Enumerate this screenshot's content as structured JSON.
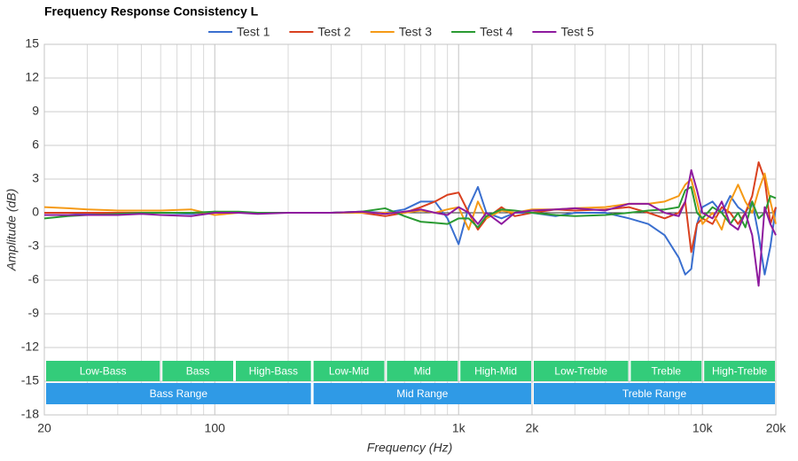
{
  "chart_data": {
    "type": "line",
    "title": "Frequency Response Consistency L",
    "x_label": "Frequency (Hz)",
    "y_label": "Amplitude (dB)",
    "x_scale": "log",
    "xlim": [
      20,
      20000
    ],
    "ylim": [
      -18,
      15
    ],
    "xticks": [
      20,
      100,
      {
        "value": 1000,
        "label": "1k"
      },
      {
        "value": 2000,
        "label": "2k"
      },
      {
        "value": 10000,
        "label": "10k"
      },
      {
        "value": 20000,
        "label": "20k"
      }
    ],
    "xminor": [
      30,
      40,
      50,
      60,
      70,
      80,
      90,
      200,
      300,
      400,
      500,
      600,
      700,
      800,
      900,
      3000,
      4000,
      5000,
      6000,
      7000,
      8000,
      9000
    ],
    "yticks": [
      15,
      12,
      9,
      6,
      3,
      0,
      -3,
      -6,
      -9,
      -12,
      -15,
      -18
    ],
    "grid": true,
    "legend": "top",
    "reference_line": 0,
    "bands": [
      {
        "label": "Low-Bass",
        "from": 20,
        "to": 60
      },
      {
        "label": "Bass",
        "from": 60,
        "to": 120
      },
      {
        "label": "High-Bass",
        "from": 120,
        "to": 250
      },
      {
        "label": "Low-Mid",
        "from": 250,
        "to": 500
      },
      {
        "label": "Mid",
        "from": 500,
        "to": 1000
      },
      {
        "label": "High-Mid",
        "from": 1000,
        "to": 2000
      },
      {
        "label": "Low-Treble",
        "from": 2000,
        "to": 5000
      },
      {
        "label": "Treble",
        "from": 5000,
        "to": 10000
      },
      {
        "label": "High-Treble",
        "from": 10000,
        "to": 20000
      }
    ],
    "band_color": "#33cc7a",
    "ranges": [
      {
        "label": "Bass Range",
        "from": 20,
        "to": 250
      },
      {
        "label": "Mid Range",
        "from": 250,
        "to": 2000
      },
      {
        "label": "Treble Range",
        "from": 2000,
        "to": 20000
      }
    ],
    "range_color": "#2f9ae6",
    "x": [
      20,
      25,
      30,
      40,
      50,
      60,
      80,
      100,
      125,
      150,
      200,
      250,
      300,
      400,
      500,
      600,
      700,
      800,
      900,
      1000,
      1100,
      1200,
      1300,
      1500,
      1700,
      2000,
      2500,
      3000,
      4000,
      5000,
      6000,
      7000,
      8000,
      8500,
      9000,
      9500,
      10000,
      11000,
      12000,
      13000,
      14000,
      15000,
      16000,
      17000,
      18000,
      19000,
      20000
    ],
    "series": [
      {
        "name": "Test 1",
        "color": "#3a6fcf",
        "values": [
          -0.2,
          -0.2,
          -0.1,
          -0.1,
          0,
          0,
          -0.1,
          0.1,
          0,
          0,
          0,
          0,
          0,
          0.1,
          0,
          0.3,
          1,
          1,
          -0.5,
          -2.8,
          0.5,
          2.3,
          0,
          -0.5,
          0,
          0,
          -0.3,
          0,
          0,
          -0.5,
          -1,
          -2,
          -4,
          -5.5,
          -5,
          -1,
          0.5,
          1,
          0,
          1.5,
          0.5,
          0,
          1,
          -2,
          -5.5,
          -3,
          0.5
        ]
      },
      {
        "name": "Test 2",
        "color": "#d9401f",
        "values": [
          0,
          0,
          0,
          0,
          0,
          0,
          0,
          0,
          0,
          0,
          0,
          0,
          0,
          0,
          -0.3,
          0,
          0.5,
          1,
          1.6,
          1.8,
          0,
          -1.5,
          -0.5,
          0.5,
          -0.3,
          0,
          0.3,
          0.2,
          0.3,
          0.5,
          0,
          -0.5,
          0,
          1,
          -3.5,
          -1,
          -0.5,
          -1,
          0.5,
          0,
          -1,
          0,
          1.5,
          4.5,
          3,
          -1,
          0.5
        ]
      },
      {
        "name": "Test 3",
        "color": "#f59a16",
        "values": [
          0.5,
          0.4,
          0.3,
          0.2,
          0.2,
          0.2,
          0.3,
          -0.2,
          0,
          0,
          0,
          0,
          0,
          0,
          0,
          0,
          0.2,
          0,
          0.3,
          0.5,
          -1.5,
          1,
          -0.5,
          0.2,
          0,
          0.3,
          0.3,
          0.4,
          0.5,
          0.8,
          0.8,
          1,
          1.5,
          2.5,
          3,
          1,
          -1,
          0,
          -1.5,
          1,
          2.5,
          1,
          0,
          2,
          3.5,
          1,
          -1
        ]
      },
      {
        "name": "Test 4",
        "color": "#2a9a32",
        "values": [
          -0.5,
          -0.3,
          -0.2,
          -0.1,
          0,
          0,
          0,
          0.1,
          0.1,
          0,
          0,
          0,
          0,
          0.1,
          0.4,
          -0.3,
          -0.8,
          -0.9,
          -1,
          -0.5,
          -0.5,
          -1.3,
          -0.3,
          0.3,
          0.2,
          0,
          -0.2,
          -0.3,
          -0.2,
          0,
          0.2,
          0.3,
          0.5,
          2,
          2.3,
          0,
          -0.5,
          0.5,
          0,
          -1,
          0,
          -1.3,
          1,
          -0.5,
          0,
          1.5,
          1.3
        ]
      },
      {
        "name": "Test 5",
        "color": "#8e1a9e",
        "values": [
          -0.2,
          -0.2,
          -0.2,
          -0.2,
          -0.1,
          -0.2,
          -0.3,
          0,
          0,
          -0.1,
          0,
          0,
          0,
          0.1,
          -0.1,
          0.1,
          0.3,
          0,
          -0.2,
          0.5,
          0,
          -1,
          0,
          -1,
          0,
          0.2,
          0.3,
          0.4,
          0.2,
          0.8,
          0.8,
          0,
          -0.3,
          1,
          3.8,
          2,
          0,
          -0.5,
          1,
          -1,
          -1.5,
          0,
          -2,
          -6.5,
          0.5,
          -1,
          -2
        ]
      }
    ]
  }
}
